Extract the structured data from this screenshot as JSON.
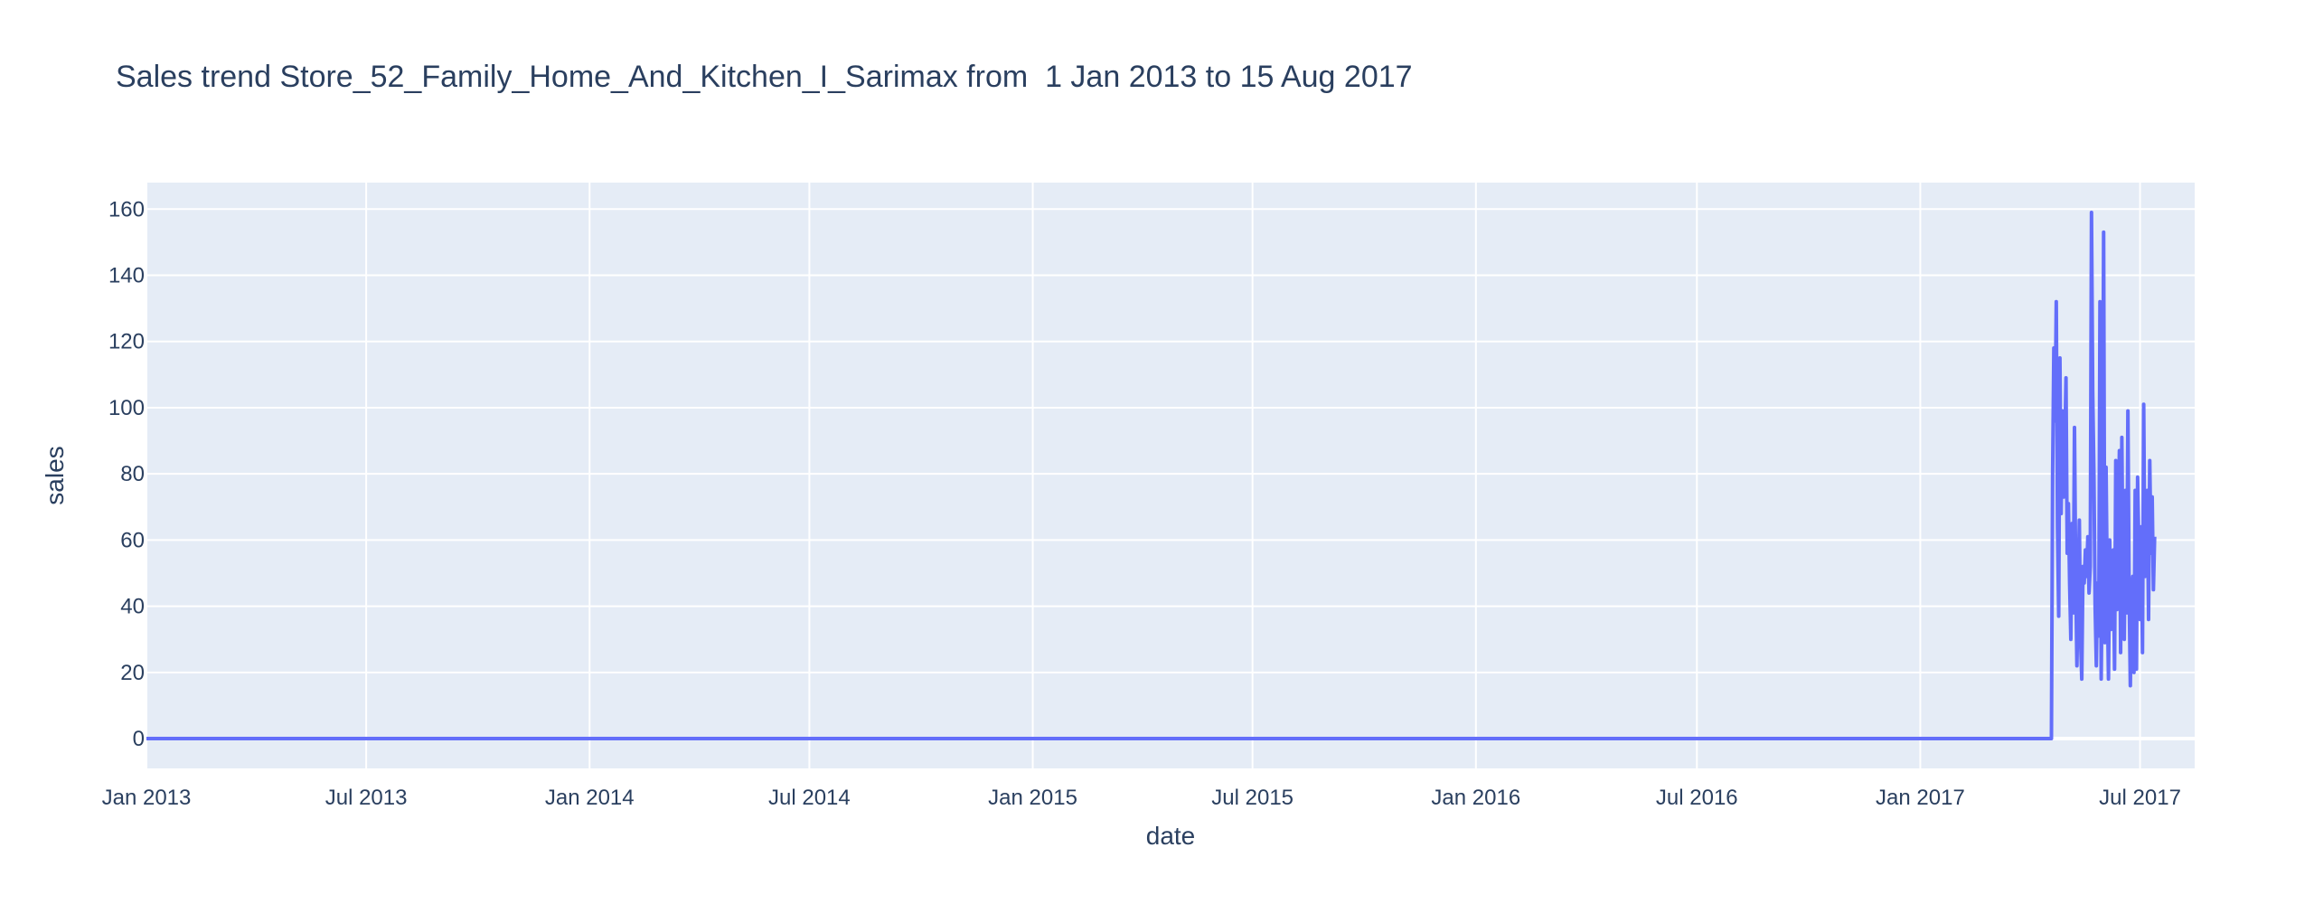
{
  "chart_data": {
    "type": "line",
    "title": "Sales trend Store_52_Family_Home_And_Kitchen_I_Sarimax from  1 Jan 2013 to 15 Aug 2017",
    "xlabel": "date",
    "ylabel": "sales",
    "x_range": [
      "2013-01-01",
      "2017-08-15"
    ],
    "ylim": [
      -9,
      168
    ],
    "x_ticks": [
      {
        "date": "2013-01-01",
        "label": "Jan 2013"
      },
      {
        "date": "2013-07-01",
        "label": "Jul 2013"
      },
      {
        "date": "2014-01-01",
        "label": "Jan 2014"
      },
      {
        "date": "2014-07-01",
        "label": "Jul 2014"
      },
      {
        "date": "2015-01-01",
        "label": "Jan 2015"
      },
      {
        "date": "2015-07-01",
        "label": "Jul 2015"
      },
      {
        "date": "2016-01-01",
        "label": "Jan 2016"
      },
      {
        "date": "2016-07-01",
        "label": "Jul 2016"
      },
      {
        "date": "2017-01-01",
        "label": "Jan 2017"
      },
      {
        "date": "2017-07-01",
        "label": "Jul 2017"
      }
    ],
    "y_ticks": [
      0,
      20,
      40,
      60,
      80,
      100,
      120,
      140,
      160
    ],
    "grid": true,
    "colors": {
      "line": "#636efa",
      "plot_bg": "#e5ecf6",
      "grid": "#ffffff",
      "text": "#2a3f5f"
    },
    "series": [
      {
        "points": [
          [
            "2013-01-01",
            0
          ],
          [
            "2017-04-19",
            0
          ],
          [
            "2017-04-20",
            80
          ],
          [
            "2017-04-21",
            118
          ],
          [
            "2017-04-22",
            96
          ],
          [
            "2017-04-23",
            132
          ],
          [
            "2017-04-24",
            64
          ],
          [
            "2017-04-25",
            37
          ],
          [
            "2017-04-26",
            115
          ],
          [
            "2017-04-27",
            68
          ],
          [
            "2017-04-28",
            99
          ],
          [
            "2017-04-29",
            73
          ],
          [
            "2017-04-30",
            88
          ],
          [
            "2017-05-01",
            109
          ],
          [
            "2017-05-02",
            56
          ],
          [
            "2017-05-03",
            71
          ],
          [
            "2017-05-04",
            47
          ],
          [
            "2017-05-05",
            30
          ],
          [
            "2017-05-06",
            65
          ],
          [
            "2017-05-07",
            38
          ],
          [
            "2017-05-08",
            94
          ],
          [
            "2017-05-09",
            49
          ],
          [
            "2017-05-10",
            22
          ],
          [
            "2017-05-11",
            45
          ],
          [
            "2017-05-12",
            66
          ],
          [
            "2017-05-13",
            30
          ],
          [
            "2017-05-14",
            18
          ],
          [
            "2017-05-15",
            52
          ],
          [
            "2017-05-16",
            47
          ],
          [
            "2017-05-17",
            57
          ],
          [
            "2017-05-18",
            49
          ],
          [
            "2017-05-19",
            61
          ],
          [
            "2017-05-20",
            44
          ],
          [
            "2017-05-21",
            52
          ],
          [
            "2017-05-22",
            159
          ],
          [
            "2017-05-23",
            105
          ],
          [
            "2017-05-24",
            80
          ],
          [
            "2017-05-25",
            40
          ],
          [
            "2017-05-26",
            22
          ],
          [
            "2017-05-27",
            47
          ],
          [
            "2017-05-28",
            31
          ],
          [
            "2017-05-29",
            132
          ],
          [
            "2017-05-30",
            18
          ],
          [
            "2017-05-31",
            57
          ],
          [
            "2017-06-01",
            153
          ],
          [
            "2017-06-02",
            29
          ],
          [
            "2017-06-03",
            82
          ],
          [
            "2017-06-04",
            45
          ],
          [
            "2017-06-05",
            18
          ],
          [
            "2017-06-06",
            60
          ],
          [
            "2017-06-07",
            33
          ],
          [
            "2017-06-08",
            52
          ],
          [
            "2017-06-09",
            57
          ],
          [
            "2017-06-10",
            21
          ],
          [
            "2017-06-11",
            84
          ],
          [
            "2017-06-12",
            39
          ],
          [
            "2017-06-13",
            64
          ],
          [
            "2017-06-14",
            87
          ],
          [
            "2017-06-15",
            26
          ],
          [
            "2017-06-16",
            91
          ],
          [
            "2017-06-17",
            46
          ],
          [
            "2017-06-18",
            30
          ],
          [
            "2017-06-19",
            75
          ],
          [
            "2017-06-20",
            38
          ],
          [
            "2017-06-21",
            99
          ],
          [
            "2017-06-22",
            45
          ],
          [
            "2017-06-23",
            16
          ],
          [
            "2017-06-24",
            43
          ],
          [
            "2017-06-25",
            49
          ],
          [
            "2017-06-26",
            20
          ],
          [
            "2017-06-27",
            75
          ],
          [
            "2017-06-28",
            21
          ],
          [
            "2017-06-29",
            79
          ],
          [
            "2017-06-30",
            58
          ],
          [
            "2017-07-01",
            36
          ],
          [
            "2017-07-02",
            64
          ],
          [
            "2017-07-03",
            26
          ],
          [
            "2017-07-04",
            101
          ],
          [
            "2017-07-05",
            49
          ],
          [
            "2017-07-06",
            68
          ],
          [
            "2017-07-07",
            75
          ],
          [
            "2017-07-08",
            36
          ],
          [
            "2017-07-09",
            84
          ],
          [
            "2017-07-10",
            56
          ],
          [
            "2017-07-11",
            73
          ],
          [
            "2017-07-12",
            45
          ],
          [
            "2017-07-13",
            61
          ]
        ]
      }
    ]
  }
}
